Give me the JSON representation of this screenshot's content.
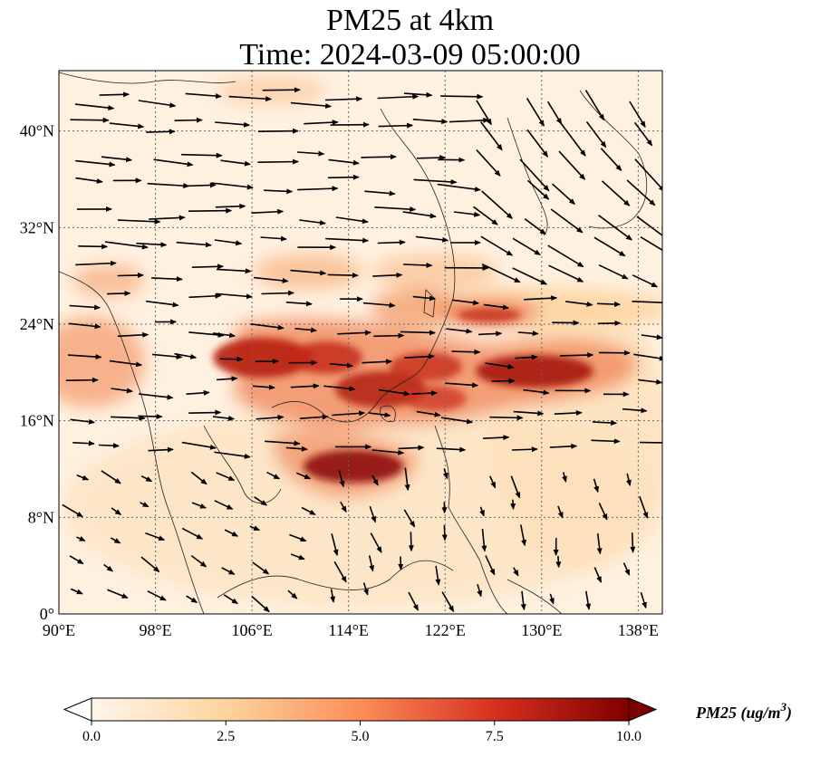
{
  "chart_data": {
    "type": "heatmap",
    "title": "PM25 at 4km",
    "subtitle": "Time: 2024-03-09 05:00:00",
    "x_ticks": [
      "90°E",
      "98°E",
      "106°E",
      "114°E",
      "122°E",
      "130°E",
      "138°E"
    ],
    "y_ticks": [
      "40°N",
      "32°N",
      "24°N",
      "16°N",
      "8°N",
      "0°"
    ],
    "x_range": [
      90,
      140
    ],
    "y_range": [
      0,
      45
    ],
    "colorbar": {
      "label": "PM25 (ug/m",
      "label_sup": "3",
      "label_close": ")",
      "ticks": [
        "0.0",
        "2.5",
        "5.0",
        "7.5",
        "10.0"
      ],
      "range": [
        0,
        10
      ],
      "colors": [
        "#fff5eb",
        "#fdd49e",
        "#fc8d59",
        "#d7301f",
        "#7f0000"
      ]
    },
    "high_concentration_regions": [
      {
        "lon": 107,
        "lat": 21.5,
        "value": 10
      },
      {
        "lon": 113,
        "lat": 21,
        "value": 9
      },
      {
        "lon": 118,
        "lat": 18.5,
        "value": 9.5
      },
      {
        "lon": 125,
        "lat": 19.5,
        "value": 9
      },
      {
        "lon": 130,
        "lat": 20,
        "value": 9
      },
      {
        "lon": 115,
        "lat": 12,
        "value": 10
      },
      {
        "lon": 124,
        "lat": 23.5,
        "value": 6
      }
    ],
    "grid": true
  }
}
